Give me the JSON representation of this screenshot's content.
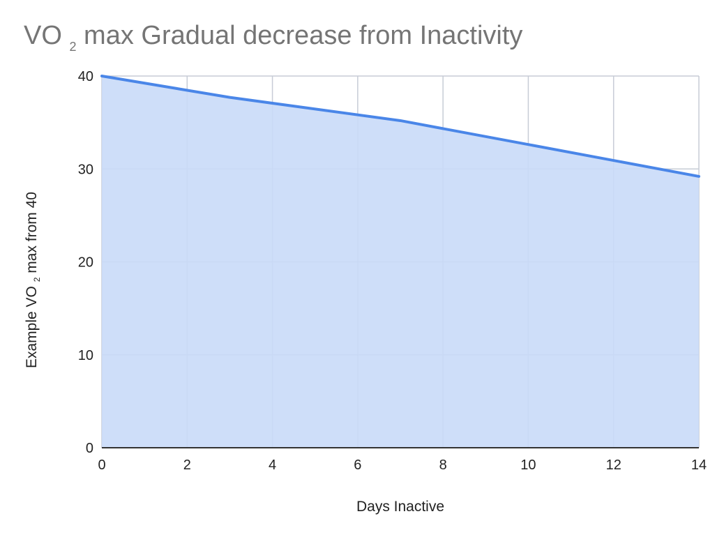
{
  "chart_data": {
    "type": "area",
    "title": {
      "prefix": "VO",
      "subscript": "2",
      "suffix": " max Gradual decrease from Inactivity"
    },
    "xlabel": "Days Inactive",
    "ylabel": {
      "prefix": "Example VO",
      "subscript": "2",
      "suffix": " max from 40"
    },
    "x": [
      0,
      3,
      7,
      14
    ],
    "series": [
      {
        "values": [
          40,
          37.7,
          35.2,
          29.2
        ]
      }
    ],
    "xlim": [
      0,
      14
    ],
    "ylim": [
      0,
      40
    ],
    "x_ticks": [
      0,
      2,
      4,
      6,
      8,
      10,
      12,
      14
    ],
    "y_ticks": [
      0,
      10,
      20,
      30,
      40
    ],
    "x_tick_labels": [
      "0",
      "2",
      "4",
      "6",
      "8",
      "10",
      "12",
      "14"
    ],
    "y_tick_labels": [
      "0",
      "10",
      "20",
      "30",
      "40"
    ],
    "grid": true,
    "line_color": "#4a86e8",
    "fill_color": "#c9daf8",
    "grid_color": "#c7ccd6",
    "axis_color": "#333333",
    "title_color": "#757575",
    "text_color": "#222222"
  }
}
